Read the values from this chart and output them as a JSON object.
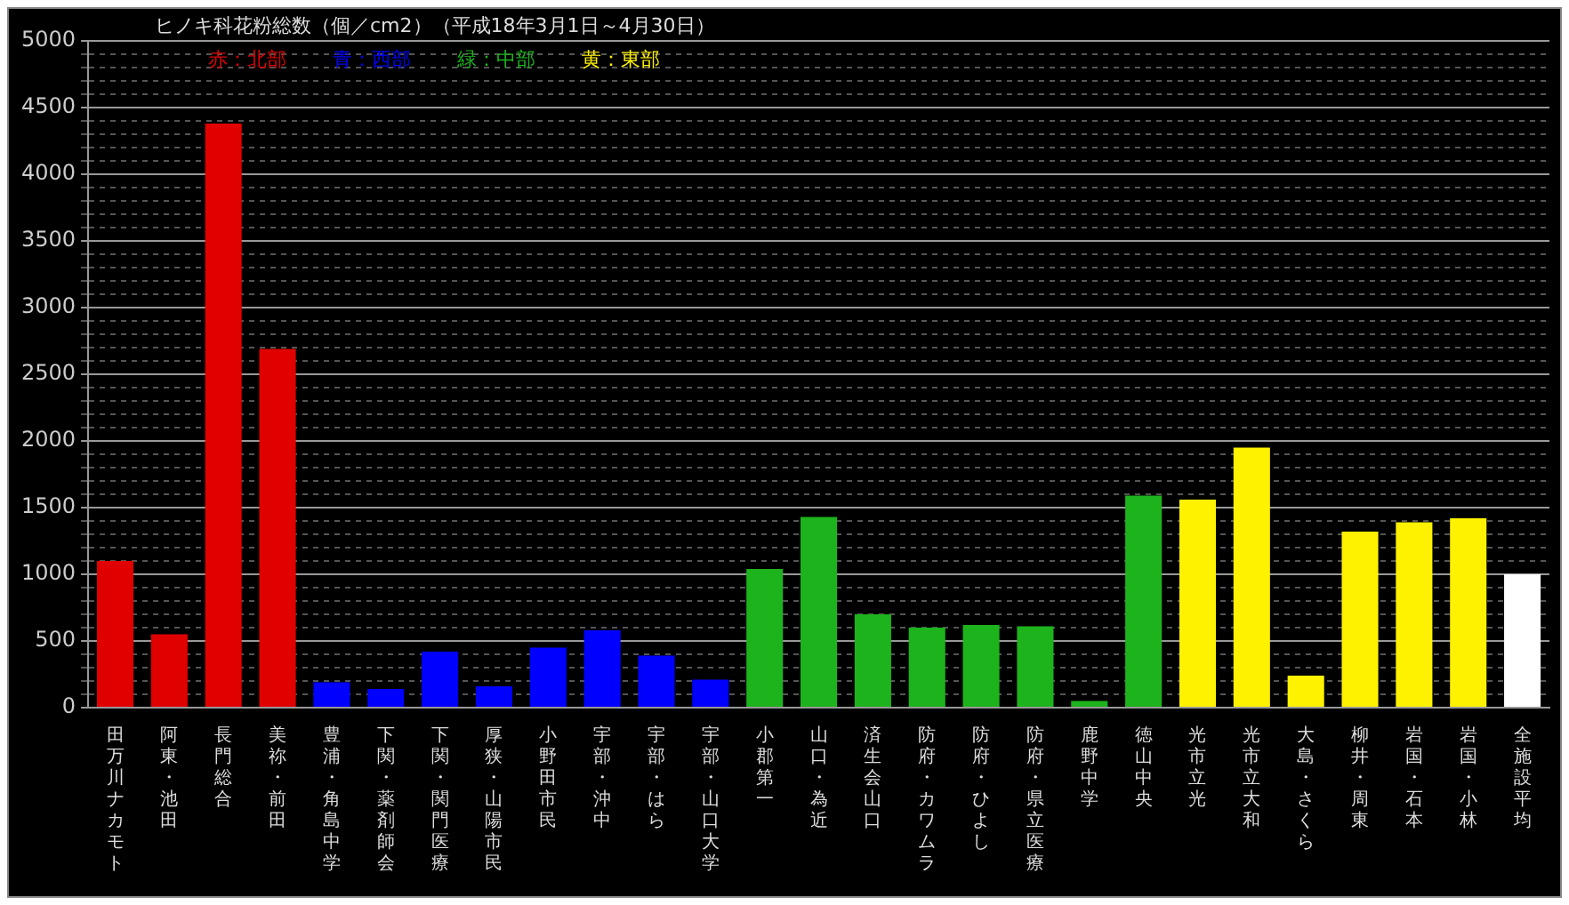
{
  "chart_data": {
    "type": "bar",
    "title": "ヒノキ科花粉総数（個／cm2）（平成18年3月1日～4月30日）",
    "categories": [
      "田万川ナカモト",
      "阿東・池田",
      "長門総合",
      "美祢・前田",
      "豊浦・角島中学",
      "下関・薬剤師会",
      "下関・関門医療",
      "厚狭・山陽市民",
      "小野田市民",
      "宇部・沖中",
      "宇部・はら",
      "宇部・山口大学",
      "小郡第一",
      "山口・為近",
      "済生会山口",
      "防府・カワムラ",
      "防府・ひよし",
      "防府・県立医療",
      "鹿野中学",
      "徳山中央",
      "光市立光",
      "光市立大和",
      "大島・さくら",
      "柳井・周東",
      "岩国・石本",
      "岩国・小林",
      "全施設平均"
    ],
    "series": [
      {
        "name": "赤：北部",
        "color": "#e00000",
        "values": [
          1100,
          550,
          4380,
          2690,
          null,
          null,
          null,
          null,
          null,
          null,
          null,
          null,
          null,
          null,
          null,
          null,
          null,
          null,
          null,
          null,
          null,
          null,
          null,
          null,
          null,
          null,
          null
        ]
      },
      {
        "name": "青：西部",
        "color": "#0000ff",
        "values": [
          null,
          null,
          null,
          null,
          190,
          140,
          420,
          160,
          450,
          580,
          390,
          210,
          null,
          null,
          null,
          null,
          null,
          null,
          null,
          null,
          null,
          null,
          null,
          null,
          null,
          null,
          null
        ]
      },
      {
        "name": "緑：中部",
        "color": "#1db31d",
        "values": [
          null,
          null,
          null,
          null,
          null,
          null,
          null,
          null,
          null,
          null,
          null,
          null,
          1040,
          1430,
          700,
          600,
          620,
          610,
          50,
          1590,
          null,
          null,
          null,
          null,
          null,
          null,
          null
        ]
      },
      {
        "name": "黄：東部",
        "color": "#fff200",
        "values": [
          null,
          null,
          null,
          null,
          null,
          null,
          null,
          null,
          null,
          null,
          null,
          null,
          null,
          null,
          null,
          null,
          null,
          null,
          null,
          null,
          1560,
          1950,
          240,
          1320,
          1390,
          1420,
          null
        ]
      },
      {
        "color": "#ffffff",
        "values": [
          null,
          null,
          null,
          null,
          null,
          null,
          null,
          null,
          null,
          null,
          null,
          null,
          null,
          null,
          null,
          null,
          null,
          null,
          null,
          null,
          null,
          null,
          null,
          null,
          null,
          null,
          1000
        ]
      }
    ],
    "ylim": [
      0,
      5000
    ],
    "yticks": [
      0,
      {
        "value": 100,
        "label": null
      },
      {
        "value": 200,
        "label": null
      },
      {
        "value": 300,
        "label": null
      },
      {
        "value": 400,
        "label": null
      },
      500,
      {
        "value": 600,
        "label": null
      },
      {
        "value": 700,
        "label": null
      },
      {
        "value": 800,
        "label": null
      },
      {
        "value": 900,
        "label": null
      },
      1000,
      {
        "value": 1100,
        "label": null
      },
      {
        "value": 1200,
        "label": null
      },
      {
        "value": 1300,
        "label": null
      },
      {
        "value": 1400,
        "label": null
      },
      1500,
      {
        "value": 1600,
        "label": null
      },
      {
        "value": 1700,
        "label": null
      },
      {
        "value": 1800,
        "label": null
      },
      {
        "value": 1900,
        "label": null
      },
      2000,
      {
        "value": 2100,
        "label": null
      },
      {
        "value": 2200,
        "label": null
      },
      {
        "value": 2300,
        "label": null
      },
      {
        "value": 2400,
        "label": null
      },
      2500,
      {
        "value": 2600,
        "label": null
      },
      {
        "value": 2700,
        "label": null
      },
      {
        "value": 2800,
        "label": null
      },
      {
        "value": 2900,
        "label": null
      },
      3000,
      {
        "value": 3100,
        "label": null
      },
      {
        "value": 3200,
        "label": null
      },
      {
        "value": 3300,
        "label": null
      },
      {
        "value": 3400,
        "label": null
      },
      3500,
      {
        "value": 3600,
        "label": null
      },
      {
        "value": 3700,
        "label": null
      },
      {
        "value": 3800,
        "label": null
      },
      {
        "value": 3900,
        "label": null
      },
      4000,
      {
        "value": 4100,
        "label": null
      },
      {
        "value": 4200,
        "label": null
      },
      {
        "value": 4300,
        "label": null
      },
      {
        "value": 4400,
        "label": null
      },
      4500,
      {
        "value": 4600,
        "label": null
      },
      {
        "value": 4700,
        "label": null
      },
      {
        "value": 4800,
        "label": null
      },
      {
        "value": 4900,
        "label": null
      },
      5000
    ],
    "grid": true,
    "legend": "top"
  }
}
